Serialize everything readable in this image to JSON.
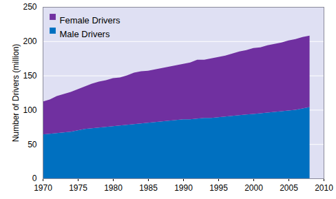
{
  "chart_data": {
    "type": "area",
    "stacked": true,
    "x": [
      1970,
      1971,
      1972,
      1973,
      1974,
      1975,
      1976,
      1977,
      1978,
      1979,
      1980,
      1981,
      1982,
      1983,
      1984,
      1985,
      1986,
      1987,
      1988,
      1989,
      1990,
      1991,
      1992,
      1993,
      1994,
      1995,
      1996,
      1997,
      1998,
      1999,
      2000,
      2001,
      2002,
      2003,
      2004,
      2005,
      2006,
      2007,
      2008
    ],
    "series": [
      {
        "name": "Male Drivers",
        "color": "#0070c0",
        "values": [
          64,
          65,
          66,
          67,
          68,
          70,
          72,
          73,
          74,
          75,
          76,
          77,
          78,
          79,
          80,
          81,
          82,
          83,
          84,
          85,
          86,
          86,
          87,
          88,
          88,
          89,
          90,
          91,
          92,
          93,
          94,
          95,
          96,
          97,
          98,
          99,
          100,
          102,
          104
        ]
      },
      {
        "name": "Female Drivers",
        "color": "#7030a0",
        "values": [
          48,
          50,
          54,
          56,
          58,
          60,
          62,
          65,
          67,
          68,
          70,
          70,
          72,
          75,
          76,
          76,
          77,
          78,
          79,
          80,
          81,
          83,
          86,
          85,
          87,
          88,
          89,
          91,
          93,
          94,
          96,
          96,
          98,
          99,
          100,
          102,
          103,
          104,
          104
        ]
      }
    ],
    "y_label": "Number of Drivers (million)",
    "xlim": [
      1970,
      2010
    ],
    "xticks": [
      1970,
      1975,
      1980,
      1985,
      1990,
      1995,
      2000,
      2005,
      2010
    ],
    "ylim": [
      0,
      250
    ],
    "yticks": [
      0,
      50,
      100,
      150,
      200,
      250
    ],
    "grid": true,
    "legend": "top-left"
  }
}
